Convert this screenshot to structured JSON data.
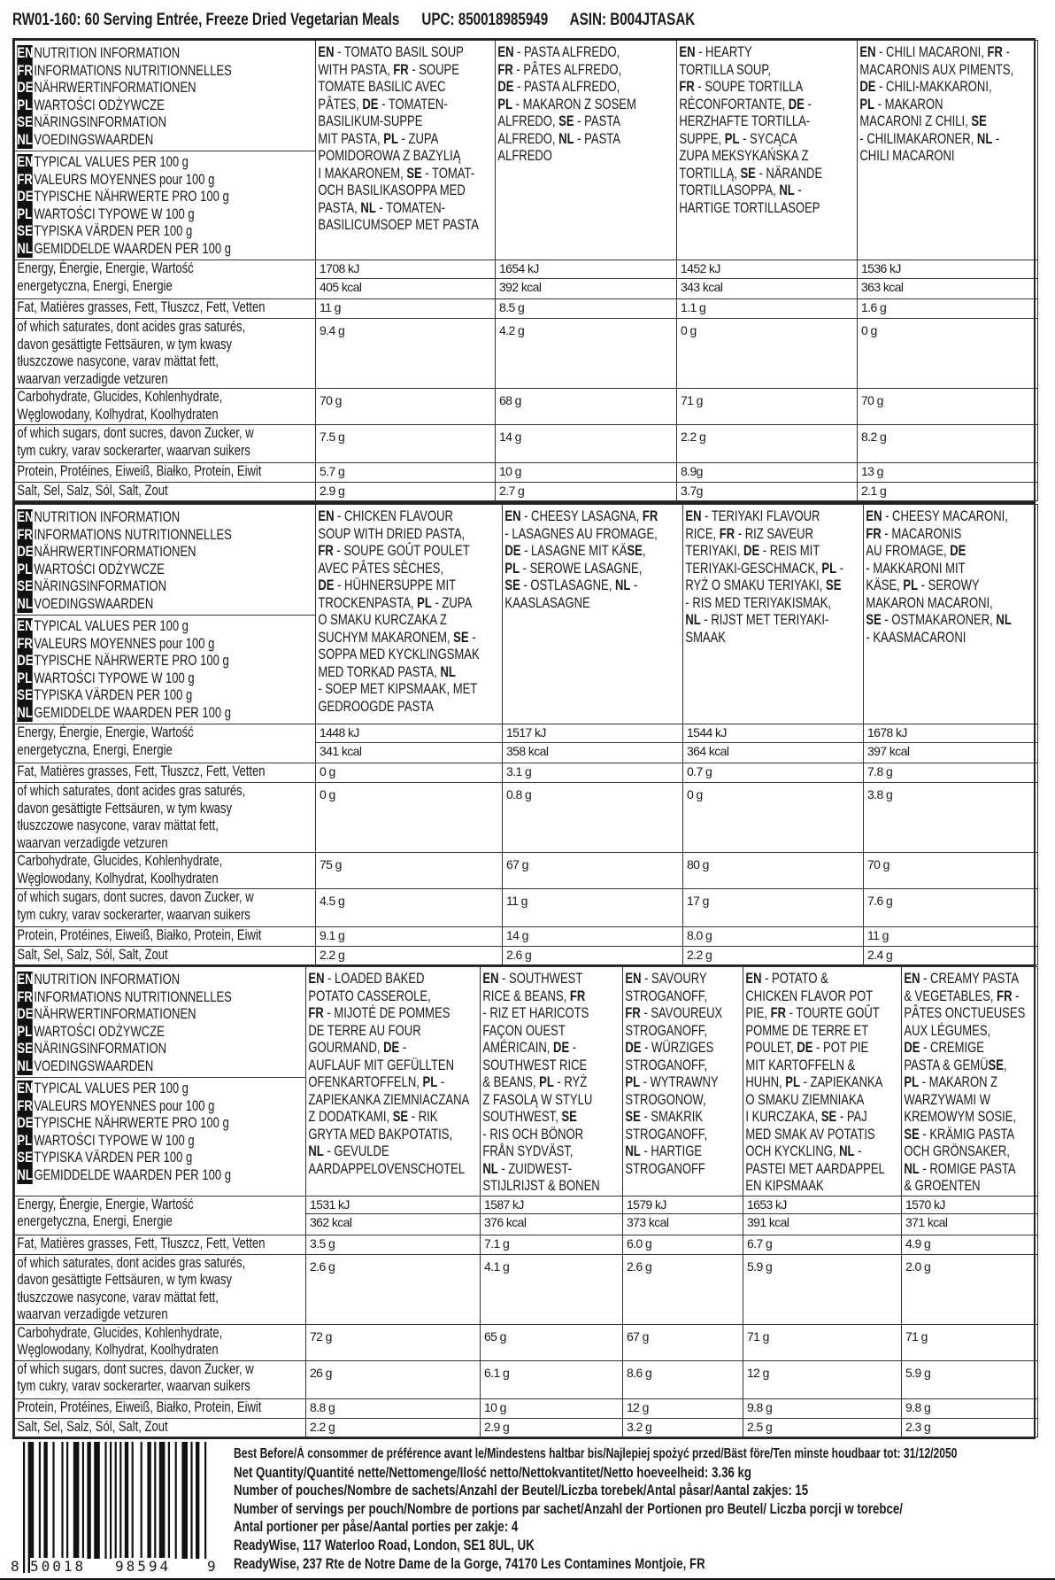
{
  "header": {
    "title": "RW01-160: 60 Serving Entrée, Freeze Dried Vegetarian Meals",
    "upc": "UPC: 850018985949",
    "asin": "ASIN: B004JTASAK"
  },
  "labels": {
    "nutrition_info": [
      {
        "code": "EN",
        "text": "NUTRITION INFORMATION"
      },
      {
        "code": "FR",
        "text": "INFORMATIONS NUTRITIONNELLES"
      },
      {
        "code": "DE",
        "text": "NÄHRWERTINFORMATIONEN"
      },
      {
        "code": "PL",
        "text": "WARTOŚCI ODŻYWCZE"
      },
      {
        "code": "SE",
        "text": "NÄRINGSINFORMATION"
      },
      {
        "code": "NL",
        "text": "VOEDINGSWAARDEN"
      }
    ],
    "typical_values": [
      {
        "code": "EN",
        "text": "TYPICAL VALUES PER 100 g"
      },
      {
        "code": "FR",
        "text": "VALEURS MOYENNES pour 100 g"
      },
      {
        "code": "DE",
        "text": "TYPISCHE NÄHRWERTE PRO 100 g"
      },
      {
        "code": "PL",
        "text": "WARTOŚCI TYPOWE W 100 g"
      },
      {
        "code": "SE",
        "text": "TYPISKA VÄRDEN PER 100 g"
      },
      {
        "code": "NL",
        "text": "GEMIDDELDE WAARDEN PER 100 g"
      }
    ],
    "rows": {
      "energy": [
        "Energy, Énergie, Energie, Wartość",
        "energetyczna, Energi, Energie"
      ],
      "fat": [
        "Fat, Matières grasses, Fett, Tłuszcz, Fett, Vetten"
      ],
      "saturates": [
        "of which saturates, dont acides gras saturés,",
        "davon gesättigte Fettsäuren, w tym kwasy",
        "tłuszczowe nasycone, varav mättat fett,",
        "waarvan verzadigde vetzuren"
      ],
      "carbohydrate": [
        "Carbohydrate, Glucides, Kohlenhydrate,",
        "Węglowodany, Kolhydrat, Koolhydraten"
      ],
      "sugars": [
        "of which sugars, dont sucres, davon Zucker, w",
        "tym cukry, varav sockerarter, waarvan suikers"
      ],
      "protein": [
        "Protein, Protéines, Eiweiß, Białko, Protein, Eiwit"
      ],
      "salt": [
        "Salt, Sel, Salz, Sól, Salt, Zout"
      ]
    }
  },
  "blocks": [
    {
      "products": [
        {
          "name": [
            "EN - TOMATO BASIL SOUP",
            "WITH PASTA, FR - SOUPE",
            "TOMATE BASILIC AVEC",
            "PÂTES, DE - TOMATEN-",
            "BASILIKUM-SUPPE",
            "MIT PASTA, PL - ZUPA",
            "POMIDOROWA Z BAZYLIĄ",
            "I MAKARONEM, SE - TOMAT-",
            "OCH BASILIKASOPPA MED",
            "PASTA, NL - TOMATEN-",
            "BASILICUMSOEP MET PASTA"
          ],
          "energy_kj": "1708 kJ",
          "energy_kcal": "405 kcal",
          "fat": "11 g",
          "saturates": "9.4 g",
          "carbohydrate": "70 g",
          "sugars": "7.5 g",
          "protein": "5.7 g",
          "salt": "2.9 g"
        },
        {
          "name": [
            "EN - PASTA ALFREDO,",
            "FR - PÂTES ALFREDO,",
            "DE - PASTA ALFREDO,",
            "PL - MAKARON Z SOSEM",
            "ALFREDO, SE - PASTA",
            "ALFREDO, NL - PASTA",
            "ALFREDO"
          ],
          "energy_kj": "1654 kJ",
          "energy_kcal": "392 kcal",
          "fat": "8.5 g",
          "saturates": "4.2 g",
          "carbohydrate": "68 g",
          "sugars": "14 g",
          "protein": "10 g",
          "salt": "2.7 g"
        },
        {
          "name": [
            "EN - HEARTY",
            "TORTILLA SOUP,",
            "FR - SOUPE TORTILLA",
            "RÉCONFORTANTE, DE -",
            "HERZHAFTE TORTILLA-",
            "SUPPE, PL - SYCĄCA",
            "ZUPA MEKSYKAŃSKA Z",
            "TORTILLĄ, SE - NÄRANDE",
            "TORTILLASOPPA, NL -",
            "HARTIGE TORTILLASOEP"
          ],
          "energy_kj": "1452 kJ",
          "energy_kcal": "343 kcal",
          "fat": "1.1 g",
          "saturates": "0 g",
          "carbohydrate": "71 g",
          "sugars": "2.2 g",
          "protein": "8.9g",
          "salt": "3.7g"
        },
        {
          "name": [
            "EN - CHILI MACARONI, FR -",
            "MACARONIS AUX PIMENTS,",
            "DE - CHILI-MAKKARONI,",
            "PL - MAKARON",
            "MACARONI Z CHILI, SE",
            "- CHILIMAKARONER, NL -",
            "CHILI MACARONI"
          ],
          "energy_kj": "1536 kJ",
          "energy_kcal": "363 kcal",
          "fat": "1.6 g",
          "saturates": "0 g",
          "carbohydrate": "70 g",
          "sugars": "8.2 g",
          "protein": "13 g",
          "salt": "2.1 g"
        }
      ]
    },
    {
      "products": [
        {
          "name": [
            "EN - CHICKEN FLAVOUR",
            "SOUP WITH DRIED PASTA,",
            "FR - SOUPE GOÛT POULET",
            "AVEC PÂTES SÈCHES,",
            "DE - HÜHNERSUPPE MIT",
            "TROCKENPASTA, PL - ZUPA",
            "O SMAKU KURCZAKA Z",
            "SUCHYM MAKARONEM, SE -",
            "SOPPA MED KYCKLINGSMAK",
            "MED TORKAD PASTA, NL",
            "- SOEP MET KIPSMAAK, MET",
            "GEDROOGDE PASTA"
          ],
          "energy_kj": "1448 kJ",
          "energy_kcal": "341 kcal",
          "fat": "0 g",
          "saturates": "0 g",
          "carbohydrate": "75 g",
          "sugars": "4.5 g",
          "protein": "9.1 g",
          "salt": "2.2 g"
        },
        {
          "name": [
            "EN - CHEESY LASAGNA, FR",
            "- LASAGNES AU FROMAGE,",
            "DE - LASAGNE MIT KÄSE,",
            "PL - SEROWE LASAGNE,",
            "SE - OSTLASAGNE, NL -",
            "KAASLASAGNE"
          ],
          "energy_kj": "1517 kJ",
          "energy_kcal": "358 kcal",
          "fat": "3.1 g",
          "saturates": "0.8 g",
          "carbohydrate": "67 g",
          "sugars": "11 g",
          "protein": "14 g",
          "salt": "2.6 g"
        },
        {
          "name": [
            "EN - TERIYAKI FLAVOUR",
            "RICE, FR - RIZ SAVEUR",
            "TERIYAKI, DE - REIS MIT",
            "TERIYAKI-GESCHMACK, PL -",
            "RYŻ O SMAKU TERIYAKI, SE",
            "- RIS MED TERIYAKISMAK,",
            "NL - RIJST MET TERIYAKI-",
            "SMAAK"
          ],
          "energy_kj": "1544 kJ",
          "energy_kcal": "364 kcal",
          "fat": "0.7 g",
          "saturates": "0 g",
          "carbohydrate": "80 g",
          "sugars": "17 g",
          "protein": "8.0 g",
          "salt": "2.2 g"
        },
        {
          "name": [
            "EN - CHEESY MACARONI,",
            "FR - MACARONIS",
            "AU FROMAGE, DE",
            "- MAKKARONI MIT",
            "KÄSE, PL - SEROWY",
            "MAKARON MACARONI,",
            "SE - OSTMAKARONER, NL",
            "- KAASMACARONI"
          ],
          "energy_kj": "1678 kJ",
          "energy_kcal": "397 kcal",
          "fat": "7.8 g",
          "saturates": "3.8 g",
          "carbohydrate": "70 g",
          "sugars": "7.6 g",
          "protein": "11 g",
          "salt": "2.4 g"
        }
      ]
    },
    {
      "products": [
        {
          "name": [
            "EN - LOADED BAKED",
            "POTATO CASSEROLE,",
            "FR - MIJOTÉ DE POMMES",
            "DE TERRE AU FOUR",
            "GOURMAND, DE -",
            "AUFLAUF MIT GEFÜLLTEN",
            "OFENKARTOFFELN, PL -",
            "ZAPIEKANKA ZIEMNIACZANA",
            "Z DODATKAMI, SE - RIK",
            "GRYTA MED BAKPOTATIS,",
            "NL - GEVULDE",
            "AARDAPPELOVENSCHOTEL"
          ],
          "energy_kj": "1531 kJ",
          "energy_kcal": "362 kcal",
          "fat": "3.5 g",
          "saturates": "2.6 g",
          "carbohydrate": "72 g",
          "sugars": "26 g",
          "protein": "8.8 g",
          "salt": "2.2 g"
        },
        {
          "name": [
            "EN - SOUTHWEST",
            "RICE & BEANS, FR",
            "- RIZ ET HARICOTS",
            "FAÇON OUEST",
            "AMÉRICAIN, DE -",
            "SOUTHWEST RICE",
            "& BEANS, PL - RYŻ",
            "Z FASOLĄ W STYLU",
            "SOUTHWEST, SE",
            "- RIS OCH BÖNOR",
            "FRÅN SYDVÄST,",
            "NL - ZUIDWEST-",
            "STIJLRIJST & BONEN"
          ],
          "energy_kj": "1587 kJ",
          "energy_kcal": "376 kcal",
          "fat": "7.1 g",
          "saturates": "4.1 g",
          "carbohydrate": "65 g",
          "sugars": "6.1 g",
          "protein": "10 g",
          "salt": "2.9 g"
        },
        {
          "name": [
            "EN - SAVOURY",
            "STROGANOFF,",
            "FR - SAVOUREUX",
            "STROGANOFF,",
            "DE - WÜRZIGES",
            "STROGANOFF,",
            "PL - WYTRAWNY",
            "STROGONOW,",
            "SE - SMAKRIK",
            "STROGANOFF,",
            "NL - HARTIGE",
            "STROGANOFF"
          ],
          "energy_kj": "1579 kJ",
          "energy_kcal": "373 kcal",
          "fat": "6.0 g",
          "saturates": "2.6 g",
          "carbohydrate": "67 g",
          "sugars": "8.6 g",
          "protein": "12 g",
          "salt": "3.2 g"
        },
        {
          "name": [
            "EN - POTATO &",
            "CHICKEN FLAVOR POT",
            "PIE, FR - TOURTE GOÛT",
            "POMME DE TERRE ET",
            "POULET, DE - POT PIE",
            "MIT KARTOFFELN &",
            "HUHN, PL - ZAPIEKANKA",
            "O SMAKU ZIEMNIAKA",
            "I KURCZAKA, SE - PAJ",
            "MED SMAK AV POTATIS",
            "OCH KYCKLING, NL -",
            "PASTEI MET AARDAPPEL",
            "EN KIPSMAAK"
          ],
          "energy_kj": "1653 kJ",
          "energy_kcal": "391 kcal",
          "fat": "6.7 g",
          "saturates": "5.9 g",
          "carbohydrate": "71 g",
          "sugars": "12 g",
          "protein": "9.8 g",
          "salt": "2.5 g"
        },
        {
          "name": [
            "EN - CREAMY PASTA",
            "& VEGETABLES, FR -",
            "PÂTES ONCTUEUSES",
            "AUX LÉGUMES,",
            "DE - CREMIGE",
            "PASTA & GEMÜSE,",
            "PL - MAKARON Z",
            "WARZYWAMI W",
            "KREMOWYM SOSIE,",
            "SE - KRÄMIG PASTA",
            "OCH GRÖNSAKER,",
            "NL - ROMIGE PASTA",
            "& GROENTEN"
          ],
          "energy_kj": "1570 kJ",
          "energy_kcal": "371 kcal",
          "fat": "4.9 g",
          "saturates": "2.0 g",
          "carbohydrate": "71 g",
          "sugars": " 5.9 g",
          "protein": "9.8 g",
          "salt": "2.3 g"
        }
      ]
    }
  ],
  "barcode": {
    "digits": [
      "8",
      "50018",
      "98594",
      "9"
    ]
  },
  "footer": {
    "lines": [
      "Best Before/À consommer de préférence avant le/Mindestens haltbar bis/Najlepiej spożyć przed/Bäst före/Ten minste houdbaar tot: 31/12/2050",
      "Net Quantity/Quantité nette/Nettomenge/Ilość netto/Nettokvantitet/Netto hoeveelheid: 3.36 kg",
      "Number of pouches/Nombre de sachets/Anzahl der Beutel/Liczba torebek/Antal påsar/Aantal zakjes: 15",
      "Number of servings per pouch/Nombre de portions par sachet/Anzahl der Portionen pro Beutel/ Liczba porcji w torebce/",
      "Antal portioner per påse/Aantal porties per zakje: 4",
      "ReadyWise, 117 Waterloo Road, London, SE1 8UL, UK",
      "ReadyWise, 237 Rte de Notre Dame de la Gorge, 74170 Les Contamines Montjoie, FR"
    ]
  }
}
